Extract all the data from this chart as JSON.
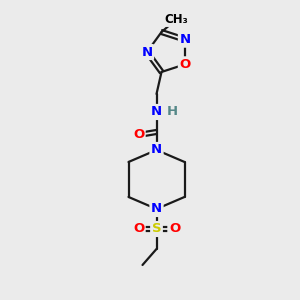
{
  "background_color": "#ebebeb",
  "bond_color": "#1a1a1a",
  "atom_colors": {
    "N": "#0000ff",
    "O": "#ff0000",
    "S": "#cccc00",
    "C": "#000000",
    "H": "#558888"
  },
  "figsize": [
    3.0,
    3.0
  ],
  "dpi": 100,
  "lw": 1.6,
  "fontsize": 9.5
}
